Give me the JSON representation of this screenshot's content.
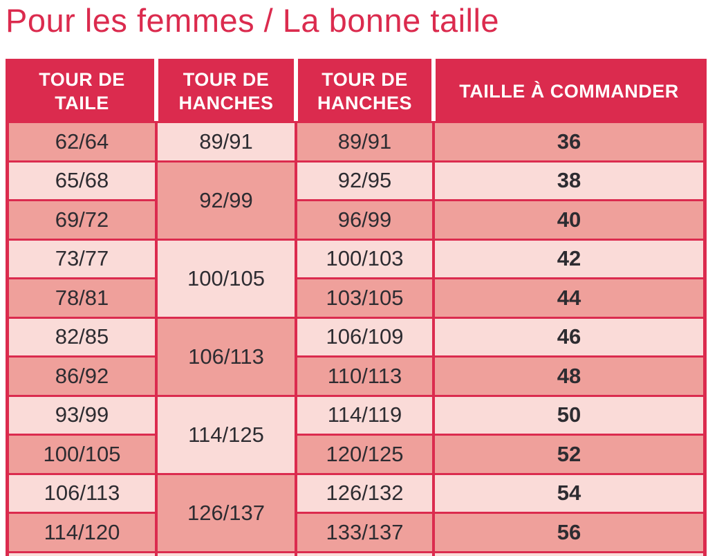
{
  "title": "Pour les femmes / La bonne taille",
  "table": {
    "col_headers": [
      {
        "label": "TOUR DE TAILE"
      },
      {
        "label": "TOUR DE HANCHES"
      },
      {
        "label": "TOUR DE HANCHES"
      },
      {
        "label": "TAILLE À COMMANDER"
      }
    ],
    "rows": [
      {
        "waist": "62/64",
        "hips": "89/91",
        "size": "36"
      },
      {
        "waist": "65/68",
        "hips": "92/95",
        "size": "38"
      },
      {
        "waist": "69/72",
        "hips": "96/99",
        "size": "40"
      },
      {
        "waist": "73/77",
        "hips": "100/103",
        "size": "42"
      },
      {
        "waist": "78/81",
        "hips": "103/105",
        "size": "44"
      },
      {
        "waist": "82/85",
        "hips": "106/109",
        "size": "46"
      },
      {
        "waist": "86/92",
        "hips": "110/113",
        "size": "48"
      },
      {
        "waist": "93/99",
        "hips": "114/119",
        "size": "50"
      },
      {
        "waist": "100/105",
        "hips": "120/125",
        "size": "52"
      },
      {
        "waist": "106/113",
        "hips": "126/132",
        "size": "54"
      },
      {
        "waist": "114/120",
        "hips": "133/137",
        "size": "56"
      }
    ],
    "hips_groups": [
      {
        "label": "89/91",
        "row_span": 1
      },
      {
        "label": "92/99",
        "row_span": 2
      },
      {
        "label": "100/105",
        "row_span": 2
      },
      {
        "label": "106/113",
        "row_span": 2
      },
      {
        "label": "114/125",
        "row_span": 2
      },
      {
        "label": "126/137",
        "row_span": 2
      }
    ]
  },
  "colors": {
    "accent_red": "#db2b4e",
    "row_dark_pink": "#efa09b",
    "row_light_pink": "#fadbd8",
    "header_text": "#ffffff",
    "body_text": "#2d2c31"
  }
}
